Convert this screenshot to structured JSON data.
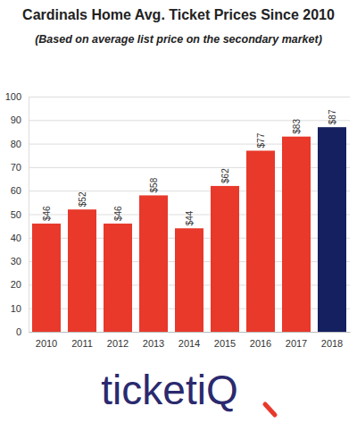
{
  "chart_data": {
    "type": "bar",
    "title": "Cardinals Home Avg. Ticket Prices Since 2010",
    "subtitle": "(Based on average list price on the secondary market)",
    "categories": [
      "2010",
      "2011",
      "2012",
      "2013",
      "2014",
      "2015",
      "2016",
      "2017",
      "2018"
    ],
    "values": [
      46,
      52,
      46,
      58,
      44,
      62,
      77,
      83,
      87
    ],
    "value_labels": [
      "$46",
      "$52",
      "$46",
      "$58",
      "$44",
      "$62",
      "$77",
      "$83",
      "$87"
    ],
    "colors": [
      "#e8392b",
      "#e8392b",
      "#e8392b",
      "#e8392b",
      "#e8392b",
      "#e8392b",
      "#e8392b",
      "#e8392b",
      "#14205f"
    ],
    "ylim": [
      0,
      100
    ],
    "yticks": [
      0,
      10,
      20,
      30,
      40,
      50,
      60,
      70,
      80,
      90,
      100
    ],
    "grid": true,
    "data_labels": true,
    "annotation": "ticketiQ"
  }
}
